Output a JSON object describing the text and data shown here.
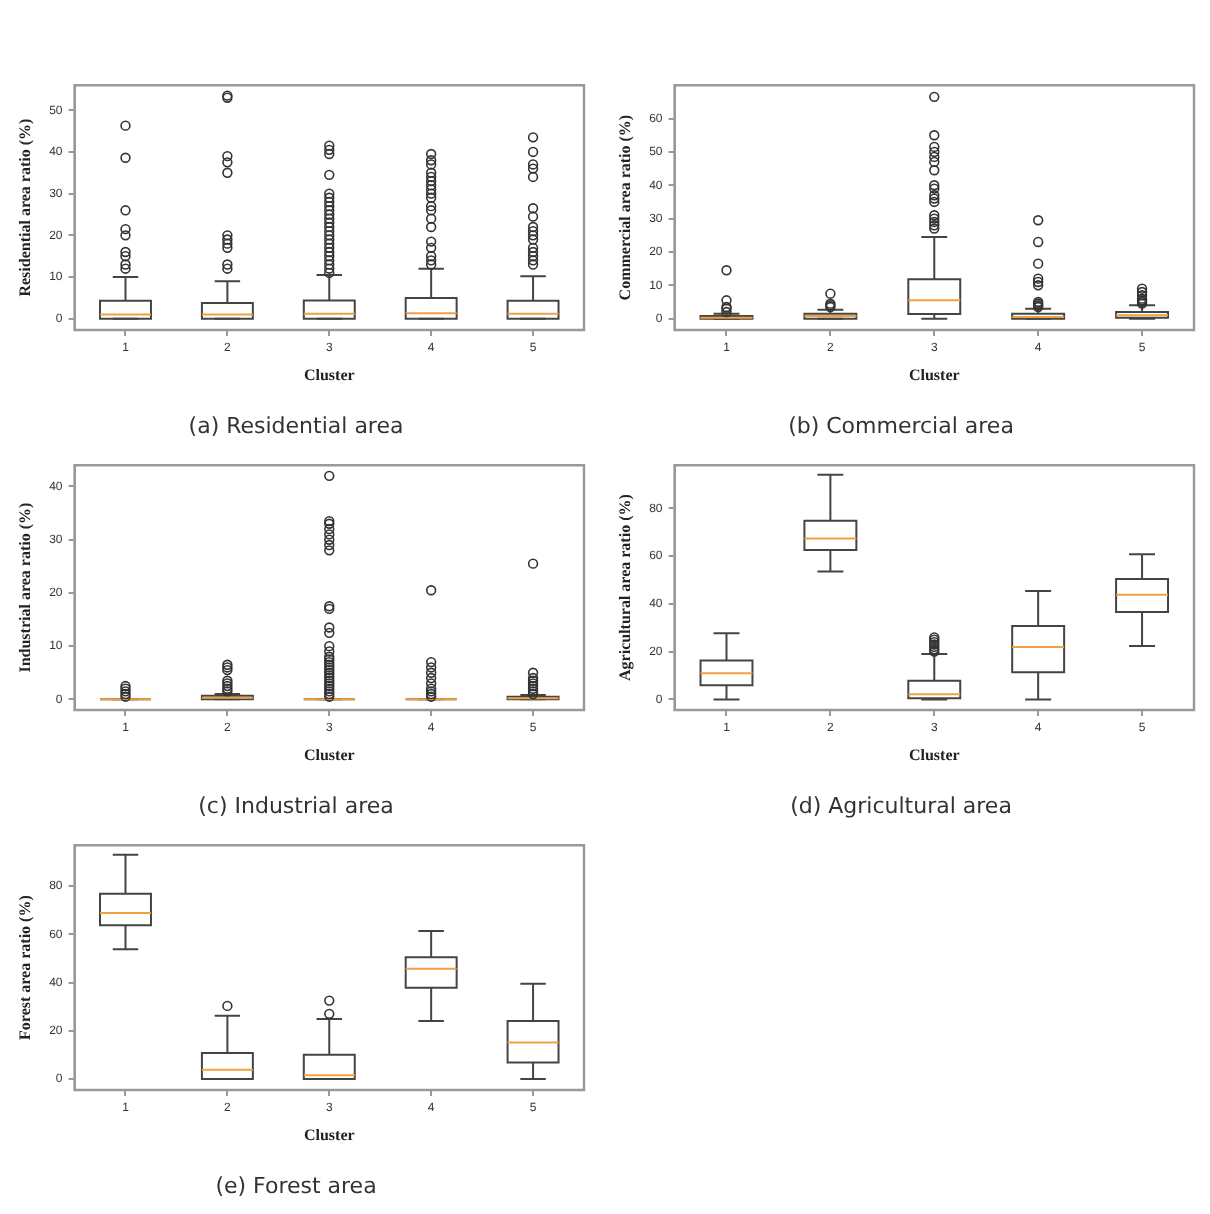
{
  "chart_data": [
    {
      "type": "box",
      "title": "(a) Residential area",
      "xlabel": "Cluster",
      "ylabel": "Residential area ratio (%)",
      "categories": [
        "1",
        "2",
        "3",
        "4",
        "5"
      ],
      "ylim": [
        -2.7,
        56
      ],
      "yticks": [
        0,
        10,
        20,
        30,
        40,
        50
      ],
      "grid": false,
      "boxes": [
        {
          "low": 0,
          "q1": 0,
          "median": 1,
          "q3": 4.3,
          "high": 10,
          "outliers": [
            12,
            13,
            15,
            16,
            20,
            21.5,
            26,
            38.6,
            46.3
          ]
        },
        {
          "low": 0,
          "q1": 0,
          "median": 1,
          "q3": 3.8,
          "high": 9,
          "outliers": [
            12,
            13,
            17,
            18,
            19,
            20,
            35,
            37.5,
            39,
            53,
            53.5
          ]
        },
        {
          "low": 0,
          "q1": 0,
          "median": 1.2,
          "q3": 4.4,
          "high": 10.5,
          "outliers": [
            11,
            12,
            13,
            14,
            15,
            16,
            17,
            18,
            19,
            20,
            21,
            22,
            23,
            24,
            25,
            26,
            27,
            28,
            29,
            30,
            34.5,
            39.5,
            40.5,
            41.5
          ]
        },
        {
          "low": 0,
          "q1": 0,
          "median": 1.3,
          "q3": 5,
          "high": 12,
          "outliers": [
            13,
            14,
            15,
            17,
            18.5,
            22,
            24,
            26,
            27,
            29,
            30,
            31,
            32,
            33,
            34,
            35,
            37,
            38,
            39.5
          ]
        },
        {
          "low": 0,
          "q1": 0,
          "median": 1.2,
          "q3": 4.3,
          "high": 10.2,
          "outliers": [
            13,
            14,
            15,
            16,
            17,
            19,
            20,
            21,
            22,
            24.5,
            26.5,
            34,
            36,
            37,
            40,
            43.5
          ]
        }
      ]
    },
    {
      "type": "box",
      "title": "(b) Commercial area",
      "xlabel": "Cluster",
      "ylabel": "Commercial area ratio (%)",
      "categories": [
        "1",
        "2",
        "3",
        "4",
        "5"
      ],
      "ylim": [
        -3.4,
        70
      ],
      "yticks": [
        0,
        10,
        20,
        30,
        40,
        50,
        60
      ],
      "grid": false,
      "boxes": [
        {
          "low": 0,
          "q1": 0,
          "median": 0.3,
          "q3": 0.8,
          "high": 1.5,
          "outliers": [
            2,
            3,
            3.5,
            5.5,
            14.5
          ]
        },
        {
          "low": 0,
          "q1": 0,
          "median": 0.8,
          "q3": 1.5,
          "high": 2.7,
          "outliers": [
            3.5,
            4,
            4.5,
            7.5
          ]
        },
        {
          "low": 0,
          "q1": 1.4,
          "median": 5.5,
          "q3": 11.8,
          "high": 24.5,
          "outliers": [
            27,
            28,
            29,
            30,
            31,
            35,
            36,
            37,
            39,
            40,
            44.5,
            47,
            48.5,
            50,
            51.5,
            55,
            66.5
          ]
        },
        {
          "low": 0,
          "q1": 0,
          "median": 0.5,
          "q3": 1.5,
          "high": 3,
          "outliers": [
            3.5,
            4,
            4.5,
            5,
            10,
            11,
            12,
            16.5,
            23,
            29.5
          ]
        },
        {
          "low": 0,
          "q1": 0.3,
          "median": 1,
          "q3": 2,
          "high": 4,
          "outliers": [
            4.5,
            5,
            5.5,
            6,
            7,
            8,
            9
          ]
        }
      ]
    },
    {
      "type": "box",
      "title": "(c) Industrial area",
      "xlabel": "Cluster",
      "ylabel": "Industrial area ratio (%)",
      "categories": [
        "1",
        "2",
        "3",
        "4",
        "5"
      ],
      "ylim": [
        -2,
        44
      ],
      "yticks": [
        0,
        10,
        20,
        30,
        40
      ],
      "grid": false,
      "boxes": [
        {
          "low": 0,
          "q1": 0,
          "median": 0,
          "q3": 0,
          "high": 0,
          "outliers": [
            0.5,
            1,
            1.5,
            2,
            2.5
          ]
        },
        {
          "low": 0,
          "q1": 0,
          "median": 0.3,
          "q3": 0.7,
          "high": 1,
          "outliers": [
            1.5,
            2,
            2.5,
            3,
            3.5,
            5.5,
            6,
            6.5
          ]
        },
        {
          "low": 0,
          "q1": 0,
          "median": 0,
          "q3": 0,
          "high": 0,
          "outliers": [
            0.5,
            1,
            1.5,
            2,
            2.5,
            3,
            3.5,
            4,
            4.5,
            5,
            5.5,
            6,
            6.5,
            7,
            7.5,
            8,
            9,
            10,
            12.5,
            13.5,
            17,
            17.5,
            28,
            29,
            30,
            31,
            32,
            33,
            33.5,
            42
          ]
        },
        {
          "low": 0,
          "q1": 0,
          "median": 0,
          "q3": 0,
          "high": 0,
          "outliers": [
            0.5,
            1,
            1.5,
            2,
            3,
            4,
            5,
            6,
            7,
            20.5
          ]
        },
        {
          "low": 0,
          "q1": 0,
          "median": 0.2,
          "q3": 0.5,
          "high": 0.8,
          "outliers": [
            1,
            1.5,
            2,
            2.5,
            3,
            3.5,
            4,
            5,
            25.5
          ]
        }
      ]
    },
    {
      "type": "box",
      "title": "(d) Agricultural area",
      "xlabel": "Cluster",
      "ylabel": "Agricultural area ratio (%)",
      "categories": [
        "1",
        "2",
        "3",
        "4",
        "5"
      ],
      "ylim": [
        -4.4,
        98
      ],
      "yticks": [
        0,
        20,
        40,
        60,
        80
      ],
      "grid": false,
      "boxes": [
        {
          "low": 0,
          "q1": 6,
          "median": 11,
          "q3": 16.3,
          "high": 27.7
        },
        {
          "low": 53.5,
          "q1": 62.5,
          "median": 67.3,
          "q3": 74.8,
          "high": 94
        },
        {
          "low": 0,
          "q1": 0.5,
          "median": 2.2,
          "q3": 7.8,
          "high": 19,
          "outliers": [
            20,
            21,
            22,
            23,
            24,
            25,
            26
          ]
        },
        {
          "low": 0,
          "q1": 11.4,
          "median": 22,
          "q3": 30.7,
          "high": 45.4
        },
        {
          "low": 22.4,
          "q1": 36.6,
          "median": 43.8,
          "q3": 50.4,
          "high": 60.7
        }
      ]
    },
    {
      "type": "box",
      "title": "(e) Forest area",
      "xlabel": "Cluster",
      "ylabel": "Forest area ratio (%)",
      "categories": [
        "1",
        "2",
        "3",
        "4",
        "5"
      ],
      "ylim": [
        -4.6,
        97
      ],
      "yticks": [
        0,
        20,
        40,
        60,
        80
      ],
      "grid": false,
      "boxes": [
        {
          "low": 53.8,
          "q1": 63.8,
          "median": 68.9,
          "q3": 76.8,
          "high": 93
        },
        {
          "low": 0,
          "q1": 0,
          "median": 3.8,
          "q3": 10.8,
          "high": 26.2,
          "outliers": [
            30.3
          ]
        },
        {
          "low": 0,
          "q1": 0,
          "median": 1.5,
          "q3": 10,
          "high": 24.9,
          "outliers": [
            27,
            32.5
          ]
        },
        {
          "low": 24,
          "q1": 37.8,
          "median": 45.7,
          "q3": 50.5,
          "high": 61.4
        },
        {
          "low": 0,
          "q1": 6.8,
          "median": 15.1,
          "q3": 24,
          "high": 39.5
        }
      ]
    }
  ]
}
